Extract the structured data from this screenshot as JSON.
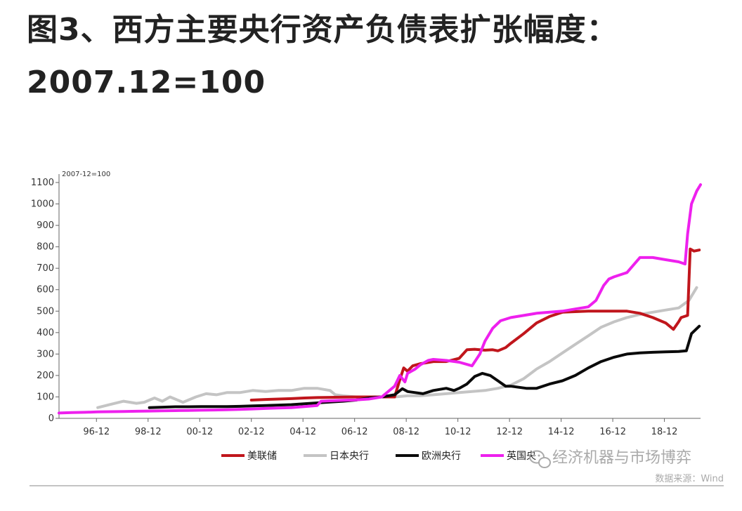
{
  "title_line1": "图3、西方主要央行资产负债表扩张幅度：",
  "title_line2": "2007.12=100",
  "chart_data": {
    "type": "line",
    "note": "2007-12=100",
    "ylim": [
      0,
      1100
    ],
    "yticks": [
      0,
      100,
      200,
      300,
      400,
      500,
      600,
      700,
      800,
      900,
      1000,
      1100
    ],
    "x_range": [
      1995.5,
      2020.35
    ],
    "xticks": [
      {
        "label": "96-12",
        "x": 1996.95
      },
      {
        "label": "98-12",
        "x": 1998.95
      },
      {
        "label": "00-12",
        "x": 2000.95
      },
      {
        "label": "02-12",
        "x": 2002.95
      },
      {
        "label": "04-12",
        "x": 2004.95
      },
      {
        "label": "06-12",
        "x": 2006.95
      },
      {
        "label": "08-12",
        "x": 2008.95
      },
      {
        "label": "10-12",
        "x": 2010.95
      },
      {
        "label": "12-12",
        "x": 2012.95
      },
      {
        "label": "14-12",
        "x": 2014.95
      },
      {
        "label": "16-12",
        "x": 2016.95
      },
      {
        "label": "18-12",
        "x": 2018.95
      }
    ],
    "series": [
      {
        "name": "日本央行",
        "color": "#c4c4c4",
        "x": [
          1997.0,
          1997.5,
          1998.0,
          1998.5,
          1998.8,
          1999.0,
          1999.2,
          1999.5,
          1999.8,
          2000.0,
          2000.3,
          2000.8,
          2001.2,
          2001.6,
          2002.0,
          2002.5,
          2003.0,
          2003.5,
          2004.0,
          2004.5,
          2005.0,
          2005.5,
          2006.0,
          2006.2,
          2006.5,
          2007.0,
          2007.5,
          2008.0,
          2008.5,
          2009.0,
          2009.5,
          2010.0,
          2010.5,
          2011.0,
          2011.5,
          2012.0,
          2012.5,
          2013.0,
          2013.5,
          2014.0,
          2014.5,
          2015.0,
          2015.5,
          2016.0,
          2016.5,
          2017.0,
          2017.5,
          2018.0,
          2018.5,
          2019.0,
          2019.5,
          2019.9,
          2020.2
        ],
        "y": [
          50,
          65,
          80,
          70,
          75,
          85,
          95,
          80,
          100,
          90,
          75,
          100,
          115,
          110,
          120,
          120,
          130,
          125,
          130,
          130,
          140,
          140,
          130,
          110,
          105,
          100,
          100,
          100,
          100,
          105,
          105,
          110,
          115,
          120,
          125,
          130,
          140,
          155,
          185,
          230,
          265,
          305,
          345,
          385,
          425,
          450,
          470,
          485,
          495,
          505,
          515,
          550,
          610
        ]
      },
      {
        "name": "美联储",
        "color": "#c0161c",
        "x": [
          2002.95,
          2003.5,
          2004.0,
          2004.5,
          2005.0,
          2005.5,
          2006.0,
          2006.5,
          2007.0,
          2007.5,
          2008.0,
          2008.5,
          2008.7,
          2008.85,
          2009.0,
          2009.2,
          2009.5,
          2010.0,
          2010.5,
          2011.0,
          2011.3,
          2011.6,
          2012.0,
          2012.3,
          2012.5,
          2012.8,
          2013.0,
          2013.5,
          2014.0,
          2014.5,
          2015.0,
          2016.0,
          2017.0,
          2017.5,
          2018.0,
          2018.5,
          2019.0,
          2019.3,
          2019.5,
          2019.6,
          2019.85,
          2019.95,
          2020.1,
          2020.3
        ],
        "y": [
          85,
          88,
          90,
          92,
          95,
          97,
          98,
          99,
          100,
          100,
          100,
          100,
          180,
          235,
          220,
          245,
          255,
          265,
          265,
          280,
          320,
          322,
          318,
          320,
          315,
          330,
          350,
          395,
          445,
          475,
          495,
          500,
          500,
          500,
          490,
          470,
          445,
          415,
          450,
          470,
          480,
          790,
          780,
          785
        ]
      },
      {
        "name": "欧洲央行",
        "color": "#0a0a0a",
        "x": [
          1999.0,
          1999.5,
          2000.0,
          2000.5,
          2001.0,
          2001.5,
          2002.0,
          2002.5,
          2003.0,
          2003.5,
          2004.0,
          2004.5,
          2005.0,
          2005.5,
          2006.0,
          2006.5,
          2007.0,
          2007.5,
          2008.0,
          2008.5,
          2008.8,
          2009.0,
          2009.3,
          2009.6,
          2010.0,
          2010.5,
          2010.8,
          2011.0,
          2011.3,
          2011.6,
          2011.9,
          2012.2,
          2012.5,
          2012.8,
          2013.0,
          2013.3,
          2013.6,
          2014.0,
          2014.5,
          2015.0,
          2015.5,
          2016.0,
          2016.5,
          2017.0,
          2017.5,
          2018.0,
          2018.5,
          2019.0,
          2019.5,
          2019.8,
          2020.0,
          2020.3
        ],
        "y": [
          50,
          52,
          54,
          54,
          55,
          55,
          55,
          56,
          58,
          60,
          62,
          64,
          68,
          72,
          76,
          80,
          85,
          95,
          100,
          110,
          138,
          125,
          120,
          115,
          130,
          140,
          130,
          140,
          160,
          195,
          210,
          200,
          175,
          150,
          150,
          145,
          140,
          140,
          160,
          175,
          200,
          235,
          265,
          285,
          300,
          305,
          308,
          310,
          312,
          315,
          395,
          430
        ]
      },
      {
        "name": "英国央行",
        "color": "#ee20ee",
        "x": [
          1995.5,
          1996.0,
          1996.5,
          1997.0,
          1997.5,
          1998.0,
          1998.5,
          1999.0,
          1999.5,
          2000.0,
          2000.5,
          2001.0,
          2001.5,
          2002.0,
          2002.5,
          2003.0,
          2003.5,
          2004.0,
          2004.5,
          2005.0,
          2005.5,
          2005.65,
          2006.0,
          2006.5,
          2007.0,
          2007.5,
          2008.0,
          2008.5,
          2008.7,
          2008.9,
          2009.0,
          2009.3,
          2009.5,
          2009.8,
          2010.0,
          2010.5,
          2011.0,
          2011.5,
          2011.8,
          2012.0,
          2012.3,
          2012.6,
          2013.0,
          2013.5,
          2014.0,
          2014.5,
          2015.0,
          2015.5,
          2016.0,
          2016.3,
          2016.6,
          2016.8,
          2017.0,
          2017.5,
          2018.0,
          2018.5,
          2019.0,
          2019.5,
          2019.75,
          2019.85,
          2020.0,
          2020.2,
          2020.35
        ],
        "y": [
          25,
          27,
          28,
          30,
          31,
          32,
          33,
          34,
          35,
          36,
          37,
          38,
          39,
          40,
          42,
          44,
          46,
          48,
          50,
          55,
          60,
          80,
          82,
          84,
          86,
          90,
          100,
          150,
          200,
          170,
          210,
          230,
          250,
          270,
          275,
          270,
          262,
          245,
          300,
          360,
          420,
          455,
          470,
          480,
          490,
          495,
          500,
          510,
          520,
          550,
          620,
          650,
          660,
          680,
          750,
          750,
          740,
          730,
          720,
          860,
          1000,
          1060,
          1090
        ]
      }
    ]
  },
  "legend": [
    {
      "label": "美联储",
      "color": "#c0161c"
    },
    {
      "label": "日本央行",
      "color": "#c4c4c4"
    },
    {
      "label": "欧洲央行",
      "color": "#0a0a0a"
    },
    {
      "label": "英国央",
      "color": "#ee20ee"
    }
  ],
  "watermark": "经济机器与市场博弈",
  "source": "数据来源：Wind",
  "wechat_icon": "wechat-icon"
}
